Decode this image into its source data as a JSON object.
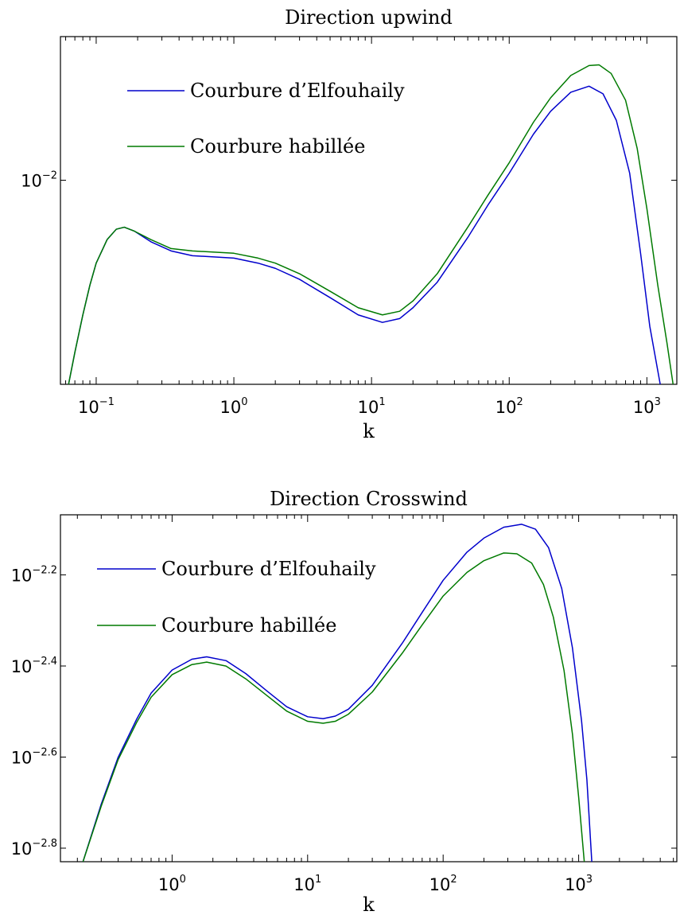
{
  "chart_data": [
    {
      "type": "line",
      "title": "Direction upwind",
      "xlabel": "k",
      "ylabel": "",
      "xscale": "log",
      "yscale": "log",
      "xlim": [
        0.055,
        1650
      ],
      "ylim": [
        0.0024,
        0.0273
      ],
      "x_ticks": [
        {
          "base": "10",
          "exp": "−1",
          "value": 0.1
        },
        {
          "base": "10",
          "exp": "0",
          "value": 1
        },
        {
          "base": "10",
          "exp": "1",
          "value": 10
        },
        {
          "base": "10",
          "exp": "2",
          "value": 100
        },
        {
          "base": "10",
          "exp": "3",
          "value": 1000
        }
      ],
      "y_ticks": [
        {
          "base": "10",
          "exp": "−2",
          "value": 0.01
        }
      ],
      "legend": {
        "placement": "upper-left"
      },
      "series": [
        {
          "name": "Courbure d’Elfouhaily",
          "color": "#0000cc",
          "points": [
            [
              0.063,
              0.0024
            ],
            [
              0.07,
              0.003
            ],
            [
              0.08,
              0.0039
            ],
            [
              0.09,
              0.0048
            ],
            [
              0.1,
              0.0056
            ],
            [
              0.12,
              0.0066
            ],
            [
              0.14,
              0.0071
            ],
            [
              0.16,
              0.0072
            ],
            [
              0.19,
              0.007
            ],
            [
              0.25,
              0.0065
            ],
            [
              0.35,
              0.0061
            ],
            [
              0.5,
              0.0059
            ],
            [
              1.0,
              0.0058
            ],
            [
              1.5,
              0.0056
            ],
            [
              2,
              0.0054
            ],
            [
              3,
              0.005
            ],
            [
              5,
              0.0044
            ],
            [
              8,
              0.0039
            ],
            [
              12,
              0.0037
            ],
            [
              16,
              0.0038
            ],
            [
              20,
              0.0041
            ],
            [
              30,
              0.0049
            ],
            [
              50,
              0.0067
            ],
            [
              70,
              0.0084
            ],
            [
              100,
              0.0105
            ],
            [
              150,
              0.0138
            ],
            [
              200,
              0.0162
            ],
            [
              280,
              0.0185
            ],
            [
              380,
              0.0193
            ],
            [
              480,
              0.0183
            ],
            [
              600,
              0.0152
            ],
            [
              750,
              0.0105
            ],
            [
              900,
              0.006
            ],
            [
              1050,
              0.0036
            ],
            [
              1250,
              0.0024
            ]
          ]
        },
        {
          "name": "Courbure habillée",
          "color": "#007a00",
          "points": [
            [
              0.063,
              0.0024
            ],
            [
              0.07,
              0.003
            ],
            [
              0.08,
              0.0039
            ],
            [
              0.09,
              0.0048
            ],
            [
              0.1,
              0.0056
            ],
            [
              0.12,
              0.0066
            ],
            [
              0.14,
              0.0071
            ],
            [
              0.16,
              0.0072
            ],
            [
              0.19,
              0.007
            ],
            [
              0.25,
              0.0066
            ],
            [
              0.35,
              0.0062
            ],
            [
              0.5,
              0.0061
            ],
            [
              1.0,
              0.006
            ],
            [
              1.5,
              0.0058
            ],
            [
              2,
              0.0056
            ],
            [
              3,
              0.0052
            ],
            [
              5,
              0.0046
            ],
            [
              8,
              0.0041
            ],
            [
              12,
              0.0039
            ],
            [
              16,
              0.004
            ],
            [
              20,
              0.0043
            ],
            [
              30,
              0.0052
            ],
            [
              50,
              0.0072
            ],
            [
              70,
              0.009
            ],
            [
              100,
              0.0113
            ],
            [
              150,
              0.015
            ],
            [
              200,
              0.0178
            ],
            [
              280,
              0.0208
            ],
            [
              380,
              0.0223
            ],
            [
              450,
              0.0224
            ],
            [
              550,
              0.0211
            ],
            [
              700,
              0.0175
            ],
            [
              850,
              0.0125
            ],
            [
              1000,
              0.0082
            ],
            [
              1200,
              0.0048
            ],
            [
              1400,
              0.0032
            ],
            [
              1550,
              0.0024
            ]
          ]
        }
      ]
    },
    {
      "type": "line",
      "title": "Direction Crosswind",
      "xlabel": "k",
      "ylabel": "",
      "xscale": "log",
      "yscale": "log",
      "xlim": [
        0.15,
        5300
      ],
      "ylim": [
        0.00148,
        0.00855
      ],
      "x_ticks": [
        {
          "base": "10",
          "exp": "0",
          "value": 1
        },
        {
          "base": "10",
          "exp": "1",
          "value": 10
        },
        {
          "base": "10",
          "exp": "2",
          "value": 100
        },
        {
          "base": "10",
          "exp": "3",
          "value": 1000
        }
      ],
      "y_ticks": [
        {
          "base": "10",
          "exp": "−2.8",
          "value": 0.0015849
        },
        {
          "base": "10",
          "exp": "−2.6",
          "value": 0.0025119
        },
        {
          "base": "10",
          "exp": "−2.4",
          "value": 0.0039811
        },
        {
          "base": "10",
          "exp": "−2.2",
          "value": 0.0063096
        }
      ],
      "legend": {
        "placement": "upper-left"
      },
      "series": [
        {
          "name": "Courbure d’Elfouhaily",
          "color": "#0000cc",
          "points": [
            [
              0.22,
              0.00148
            ],
            [
              0.3,
              0.00198
            ],
            [
              0.4,
              0.00251
            ],
            [
              0.55,
              0.00305
            ],
            [
              0.7,
              0.00347
            ],
            [
              1.0,
              0.0039
            ],
            [
              1.4,
              0.00412
            ],
            [
              1.8,
              0.00417
            ],
            [
              2.5,
              0.00409
            ],
            [
              3.5,
              0.00383
            ],
            [
              5,
              0.00351
            ],
            [
              7,
              0.00324
            ],
            [
              10,
              0.00308
            ],
            [
              13,
              0.00305
            ],
            [
              16,
              0.00309
            ],
            [
              20,
              0.0032
            ],
            [
              30,
              0.00361
            ],
            [
              50,
              0.00447
            ],
            [
              70,
              0.00522
            ],
            [
              100,
              0.00614
            ],
            [
              150,
              0.00708
            ],
            [
              200,
              0.0076
            ],
            [
              280,
              0.00803
            ],
            [
              380,
              0.00815
            ],
            [
              480,
              0.00795
            ],
            [
              600,
              0.00724
            ],
            [
              750,
              0.00589
            ],
            [
              900,
              0.00436
            ],
            [
              1050,
              0.00302
            ],
            [
              1150,
              0.00224
            ],
            [
              1250,
              0.00148
            ]
          ]
        },
        {
          "name": "Courbure habillée",
          "color": "#007a00",
          "points": [
            [
              0.22,
              0.00148
            ],
            [
              0.3,
              0.00196
            ],
            [
              0.4,
              0.00248
            ],
            [
              0.55,
              0.003
            ],
            [
              0.7,
              0.0034
            ],
            [
              1.0,
              0.00381
            ],
            [
              1.4,
              0.00401
            ],
            [
              1.8,
              0.00406
            ],
            [
              2.5,
              0.00398
            ],
            [
              3.5,
              0.00373
            ],
            [
              5,
              0.00343
            ],
            [
              7,
              0.00317
            ],
            [
              10,
              0.00301
            ],
            [
              13,
              0.00298
            ],
            [
              16,
              0.00301
            ],
            [
              20,
              0.00312
            ],
            [
              30,
              0.00349
            ],
            [
              50,
              0.00425
            ],
            [
              70,
              0.0049
            ],
            [
              100,
              0.00567
            ],
            [
              150,
              0.00639
            ],
            [
              200,
              0.00678
            ],
            [
              280,
              0.00705
            ],
            [
              350,
              0.00702
            ],
            [
              450,
              0.0067
            ],
            [
              550,
              0.00601
            ],
            [
              650,
              0.0051
            ],
            [
              780,
              0.00389
            ],
            [
              900,
              0.00282
            ],
            [
              1000,
              0.00205
            ],
            [
              1100,
              0.00148
            ]
          ]
        }
      ]
    }
  ]
}
